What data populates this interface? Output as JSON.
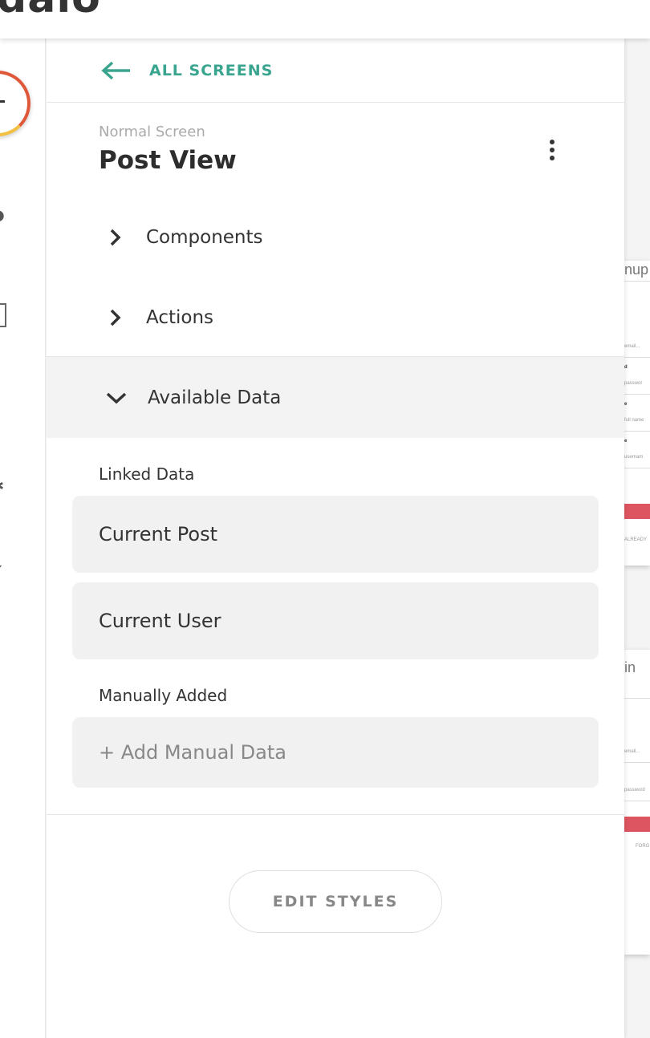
{
  "topbar": {
    "logo": "dalo"
  },
  "panel": {
    "back_label": "ALL SCREENS",
    "screen_type": "Normal Screen",
    "screen_name": "Post View",
    "sections": [
      {
        "label": "Components",
        "expanded": false
      },
      {
        "label": "Actions",
        "expanded": false
      },
      {
        "label": "Available Data",
        "expanded": true
      }
    ],
    "linked_heading": "Linked Data",
    "linked": [
      "Current Post",
      "Current User"
    ],
    "manual_heading": "Manually Added",
    "add_manual": "+ Add Manual Data",
    "edit_styles": "EDIT STYLES"
  },
  "canvas": {
    "signup": {
      "title": "nup",
      "fields": [
        "d",
        "e",
        "e"
      ],
      "placeholders": [
        "email...",
        "passwor",
        "full name",
        "usernam"
      ],
      "footer": "ALREADY"
    },
    "login": {
      "title": "in",
      "placeholders": [
        "email...",
        "password"
      ],
      "footer": "FORG"
    }
  },
  "colors": {
    "accent": "#3aa58f",
    "button_red": "#dd5560",
    "add_ring_red": "#e0583a",
    "add_ring_yellow": "#f2c043"
  }
}
